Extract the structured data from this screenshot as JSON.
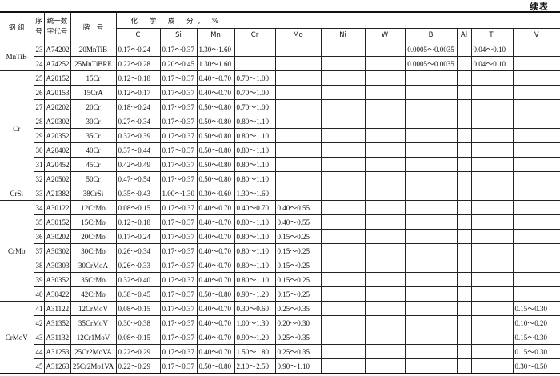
{
  "continued_label": "续表",
  "headers": {
    "group": "钢 组",
    "seq": "序号",
    "code": "统一数字代号",
    "grade": "牌　号",
    "composition": "化 学 成 分, %",
    "elements": [
      "C",
      "Si",
      "Mn",
      "Cr",
      "Mo",
      "Ni",
      "W",
      "B",
      "Al",
      "Ti",
      "V"
    ]
  },
  "groups": [
    {
      "name": "MnTiB",
      "rows": [
        {
          "seq": "23",
          "code": "A74202",
          "grade": "20MnTiB",
          "C": "0.17～0.24",
          "Si": "0.17～0.37",
          "Mn": "1.30～1.60",
          "B": "0.0005～0.0035",
          "Ti": "0.04～0.10"
        },
        {
          "seq": "24",
          "code": "A74252",
          "grade": "25MnTiBRE",
          "C": "0.22～0.28",
          "Si": "0.20～0.45",
          "Mn": "1.30～1.60",
          "B": "0.0005～0.0035",
          "Ti": "0.04～0.10"
        }
      ]
    },
    {
      "name": "Cr",
      "rows": [
        {
          "seq": "25",
          "code": "A20152",
          "grade": "15Cr",
          "C": "0.12～0.18",
          "Si": "0.17～0.37",
          "Mn": "0.40～0.70",
          "Cr": "0.70～1.00"
        },
        {
          "seq": "26",
          "code": "A20153",
          "grade": "15CrA",
          "C": "0.12～0.17",
          "Si": "0.17～0.37",
          "Mn": "0.40～0.70",
          "Cr": "0.70～1.00"
        },
        {
          "seq": "27",
          "code": "A20202",
          "grade": "20Cr",
          "C": "0.18～0.24",
          "Si": "0.17～0.37",
          "Mn": "0.50～0.80",
          "Cr": "0.70～1.00"
        },
        {
          "seq": "28",
          "code": "A20302",
          "grade": "30Cr",
          "C": "0.27～0.34",
          "Si": "0.17～0.37",
          "Mn": "0.50～0.80",
          "Cr": "0.80～1.10"
        },
        {
          "seq": "29",
          "code": "A20352",
          "grade": "35Cr",
          "C": "0.32～0.39",
          "Si": "0.17～0.37",
          "Mn": "0.50～0.80",
          "Cr": "0.80～1.10"
        },
        {
          "seq": "30",
          "code": "A20402",
          "grade": "40Cr",
          "C": "0.37～0.44",
          "Si": "0.17～0.37",
          "Mn": "0.50～0.80",
          "Cr": "0.80～1.10"
        },
        {
          "seq": "31",
          "code": "A20452",
          "grade": "45Cr",
          "C": "0.42～0.49",
          "Si": "0.17～0.37",
          "Mn": "0.50～0.80",
          "Cr": "0.80～1.10"
        },
        {
          "seq": "32",
          "code": "A20502",
          "grade": "50Cr",
          "C": "0.47～0.54",
          "Si": "0.17～0.37",
          "Mn": "0.50～0.80",
          "Cr": "0.80～1.10"
        }
      ]
    },
    {
      "name": "CrSi",
      "rows": [
        {
          "seq": "33",
          "code": "A21382",
          "grade": "38CrSi",
          "C": "0.35～0.43",
          "Si": "1.00～1.30",
          "Mn": "0.30～0.60",
          "Cr": "1.30～1.60"
        }
      ]
    },
    {
      "name": "CrMo",
      "rows": [
        {
          "seq": "34",
          "code": "A30122",
          "grade": "12CrMo",
          "C": "0.08～0.15",
          "Si": "0.17～0.37",
          "Mn": "0.40～0.70",
          "Cr": "0.40～0.70",
          "Mo": "0.40～0.55"
        },
        {
          "seq": "35",
          "code": "A30152",
          "grade": "15CrMo",
          "C": "0.12～0.18",
          "Si": "0.17～0.37",
          "Mn": "0.40～0.70",
          "Cr": "0.80～1.10",
          "Mo": "0.40～0.55"
        },
        {
          "seq": "36",
          "code": "A30202",
          "grade": "20CrMo",
          "C": "0.17～0.24",
          "Si": "0.17～0.37",
          "Mn": "0.40～0.70",
          "Cr": "0.80～1.10",
          "Mo": "0.15～0.25"
        },
        {
          "seq": "37",
          "code": "A30302",
          "grade": "30CrMo",
          "C": "0.26～0.34",
          "Si": "0.17～0.37",
          "Mn": "0.40～0.70",
          "Cr": "0.80～1.10",
          "Mo": "0.15～0.25"
        },
        {
          "seq": "38",
          "code": "A30303",
          "grade": "30CrMoA",
          "C": "0.26～0.33",
          "Si": "0.17～0.37",
          "Mn": "0.40～0.70",
          "Cr": "0.80～1.10",
          "Mo": "0.15～0.25"
        },
        {
          "seq": "39",
          "code": "A30352",
          "grade": "35CrMo",
          "C": "0.32～0.40",
          "Si": "0.17～0.37",
          "Mn": "0.40～0.70",
          "Cr": "0.80～1.10",
          "Mo": "0.15～0.25"
        },
        {
          "seq": "40",
          "code": "A30422",
          "grade": "42CrMo",
          "C": "0.38～0.45",
          "Si": "0.17～0.37",
          "Mn": "0.50～0.80",
          "Cr": "0.90～1.20",
          "Mo": "0.15～0.25"
        }
      ]
    },
    {
      "name": "CrMoV",
      "rows": [
        {
          "seq": "41",
          "code": "A31122",
          "grade": "12CrMoV",
          "C": "0.08～0.15",
          "Si": "0.17～0.37",
          "Mn": "0.40～0.70",
          "Cr": "0.30～0.60",
          "Mo": "0.25～0.35",
          "V": "0.15～0.30"
        },
        {
          "seq": "42",
          "code": "A31352",
          "grade": "35CrMoV",
          "C": "0.30～0.38",
          "Si": "0.17～0.37",
          "Mn": "0.40～0.70",
          "Cr": "1.00～1.30",
          "Mo": "0.20～0.30",
          "V": "0.10～0.20"
        },
        {
          "seq": "43",
          "code": "A31132",
          "grade": "12Cr1MoV",
          "C": "0.08～0.15",
          "Si": "0.17～0.37",
          "Mn": "0.40～0.70",
          "Cr": "0.90～1.20",
          "Mo": "0.25～0.35",
          "V": "0.15～0.30"
        },
        {
          "seq": "44",
          "code": "A31253",
          "grade": "25Cr2MoVA",
          "C": "0.22～0.29",
          "Si": "0.17～0.37",
          "Mn": "0.40～0.70",
          "Cr": "1.50～1.80",
          "Mo": "0.25～0.35",
          "V": "0.15～0.30"
        },
        {
          "seq": "45",
          "code": "A31263",
          "grade": "25Cr2Mo1VA",
          "C": "0.22～0.29",
          "Si": "0.17～0.37",
          "Mn": "0.50～0.80",
          "Cr": "2.10～2.50",
          "Mo": "0.90～1.10",
          "V": "0.30～0.50"
        }
      ]
    }
  ]
}
